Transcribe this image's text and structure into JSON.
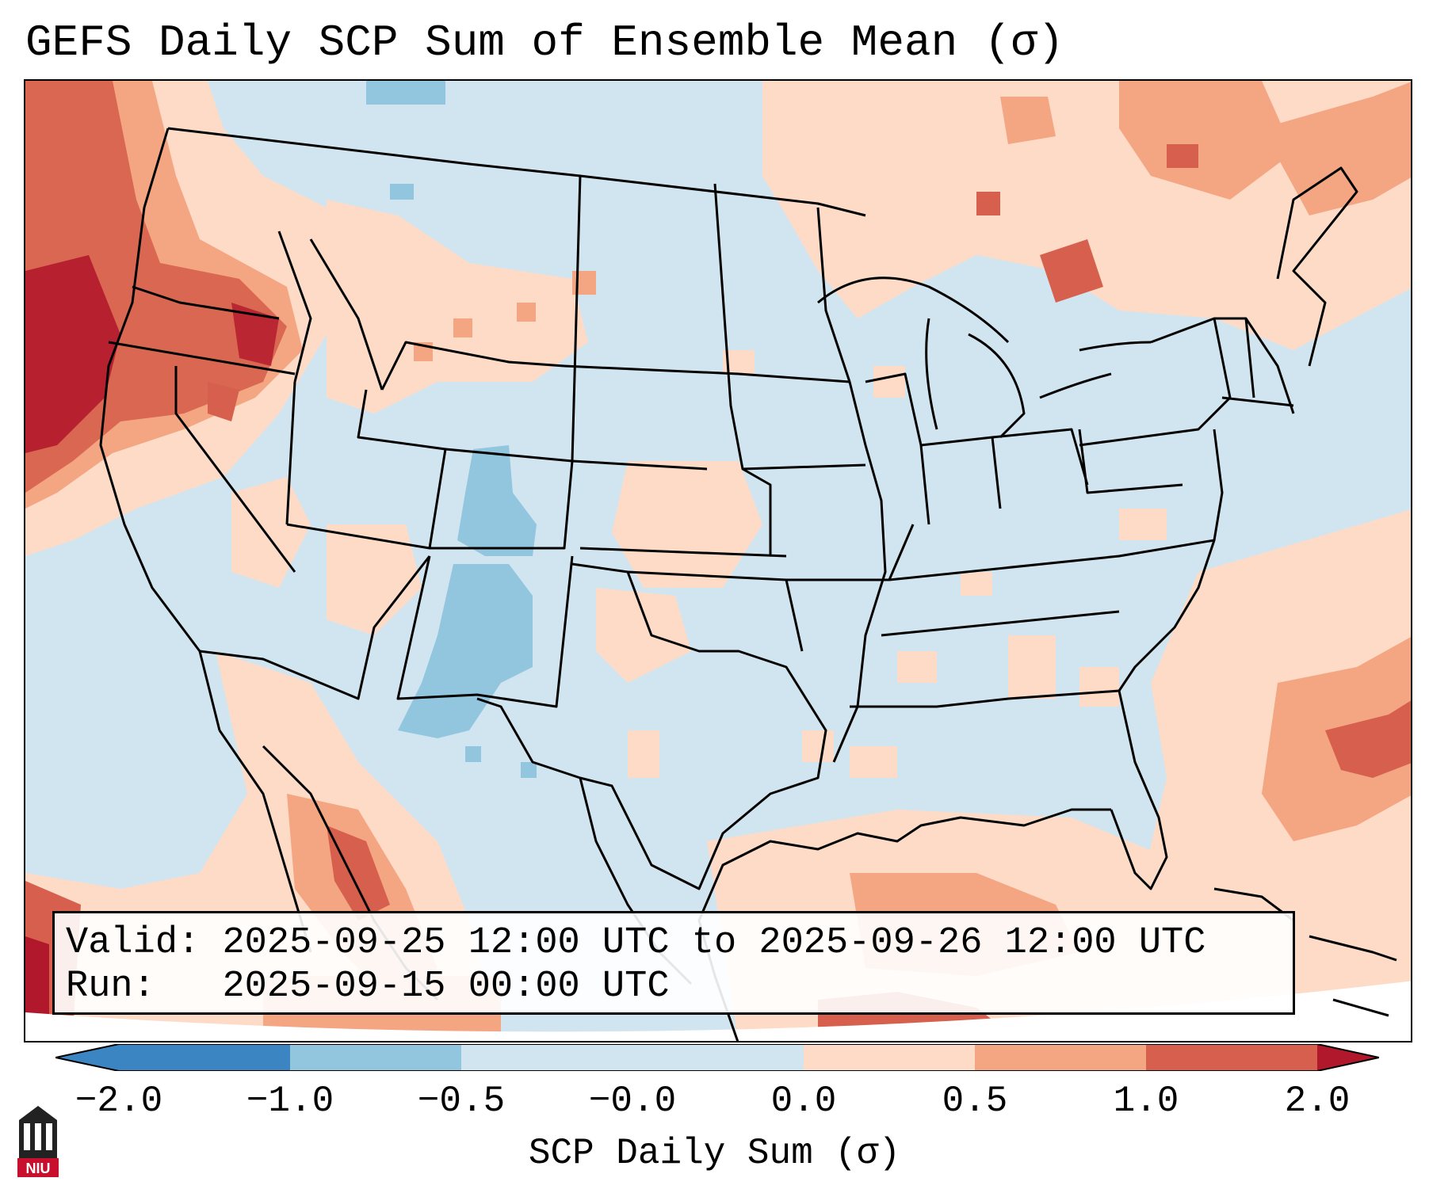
{
  "title": "GEFS Daily SCP Sum of Ensemble Mean (σ)",
  "info": {
    "valid_label": "Valid:",
    "valid_value": "2025-09-25 12:00 UTC to 2025-09-26 12:00 UTC",
    "run_label": "Run:",
    "run_value": "2025-09-15 00:00 UTC"
  },
  "colorbar": {
    "label": "SCP Daily Sum (σ)",
    "ticks": [
      "−2.0",
      "−1.0",
      "−0.5",
      "−0.0",
      "0.0",
      "0.5",
      "1.0",
      "2.0"
    ],
    "colors": [
      "#3b86c2",
      "#92c5de",
      "#d1e5f0",
      "#f7f7f7",
      "#fddbc7",
      "#f4a582",
      "#d6604d",
      "#b2182b"
    ],
    "extend": "both"
  },
  "map": {
    "region": "Contiguous United States",
    "background_level": "#d1e5f0",
    "positive_area_colors": [
      "#fddbc7",
      "#f4a582",
      "#d6604d",
      "#b2182b"
    ],
    "negative_area_colors": [
      "#92c5de"
    ]
  },
  "logo": {
    "text": "NIU",
    "brand_color": "#c8102e"
  }
}
